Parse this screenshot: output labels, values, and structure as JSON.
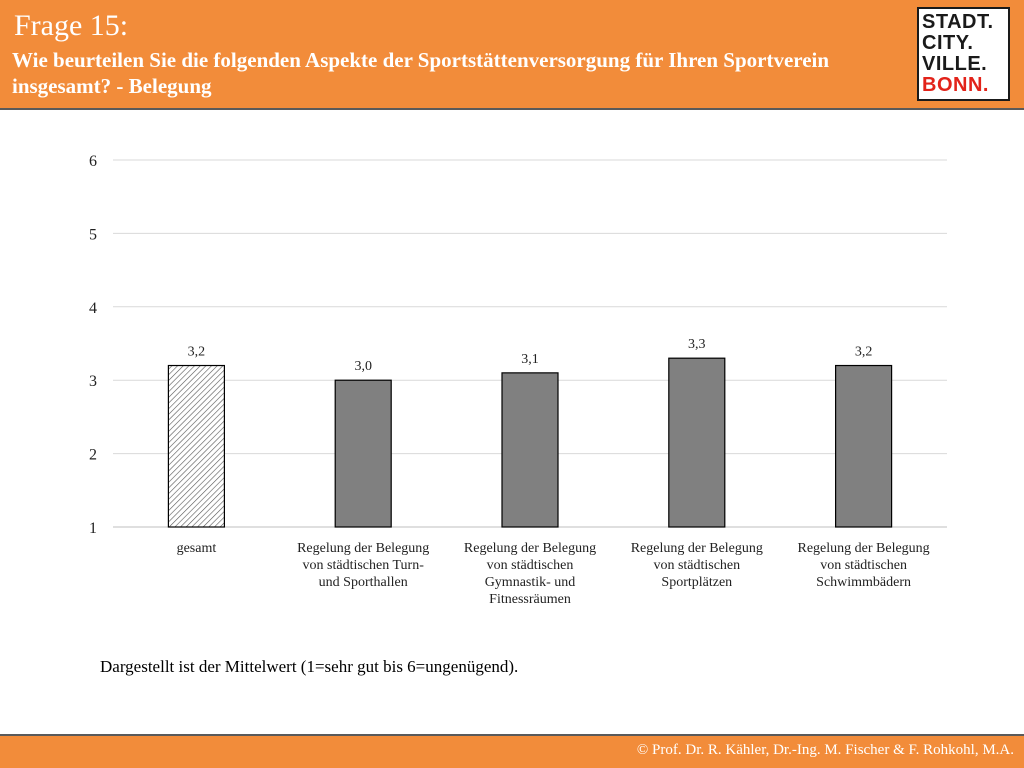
{
  "header": {
    "title": "Frage 15:",
    "question": "Wie beurteilen Sie die folgenden Aspekte der Sportstättenversorgung für Ihren Sportverein insgesamt? - Belegung"
  },
  "logo": {
    "lines": [
      "STADT.",
      "CITY.",
      "VILLE.",
      "BONN."
    ],
    "text_color": "#1a1a1a",
    "accent_color": "#e2231a"
  },
  "chart_data": {
    "type": "bar",
    "title": "",
    "xlabel": "",
    "ylabel": "",
    "ylim": [
      1,
      6
    ],
    "yticks": [
      "1",
      "2",
      "3",
      "4",
      "5",
      "6"
    ],
    "grid": true,
    "categories": [
      [
        "gesamt"
      ],
      [
        "Regelung der Belegung",
        "von städtischen Turn-",
        "und Sporthallen"
      ],
      [
        "Regelung der Belegung",
        "von städtischen",
        "Gymnastik- und",
        "Fitnessräumen"
      ],
      [
        "Regelung der Belegung",
        "von städtischen",
        "Sportplätzen"
      ],
      [
        "Regelung der Belegung",
        "von städtischen",
        "Schwimmbädern"
      ]
    ],
    "values": [
      3.2,
      3.0,
      3.1,
      3.3,
      3.2
    ],
    "value_labels": [
      "3,2",
      "3,0",
      "3,1",
      "3,3",
      "3,2"
    ],
    "bar_styles": [
      "hatched",
      "solid",
      "solid",
      "solid",
      "solid"
    ],
    "bar_color": "#808080",
    "grid_color": "#d9d9d9"
  },
  "note": "Dargestellt ist der Mittelwert (1=sehr gut bis 6=ungenügend).",
  "footer": {
    "copyright": "© Prof. Dr. R. Kähler, Dr.-Ing. M. Fischer & F. Rohkohl, M.A."
  },
  "colors": {
    "accent": "#f28c3a"
  }
}
